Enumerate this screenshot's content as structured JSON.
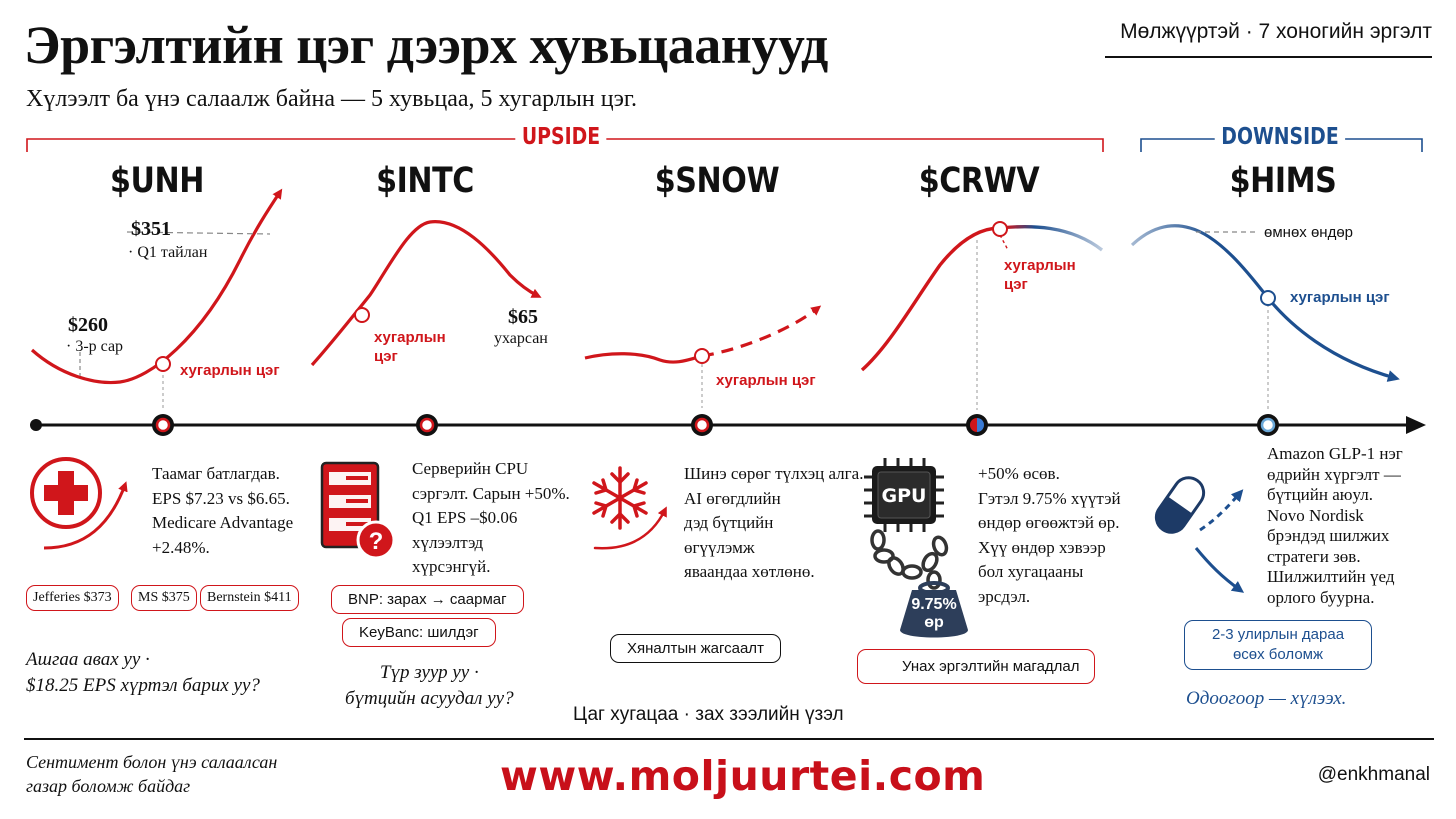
{
  "header": {
    "title": "Эргэлтийн цэг дээрх хувьцаанууд",
    "subtitle": "Хүлээлт ба үнэ салаалж байна — 5 хувьцаа, 5 хугарлын цэг.",
    "series": "Мөлжүүртэй · 7 хоногийн эргэлт"
  },
  "brackets": {
    "upside": "UPSIDE",
    "downside": "DOWNSIDE"
  },
  "colors": {
    "red": "#d0161b",
    "blue": "#1d4f8f",
    "black": "#111111"
  },
  "stocks": [
    {
      "ticker": "$UNH",
      "price_high": "$351",
      "price_high_note": "· Q1 тайлан",
      "price_low": "$260",
      "price_low_note": "· 3-р сар",
      "break_label": "хугарлын цэг",
      "icon": "medical-cross-icon",
      "desc": [
        "Таамаг батлагдав.",
        "EPS $7.23 vs $6.65.",
        "Medicare Advantage",
        "+2.48%."
      ],
      "chips": [
        "Jefferies $373",
        "MS $375",
        "Bernstein $411"
      ],
      "question": [
        "Ашгаа авах уу ·",
        "$18.25 EPS хүртэл барих уу?"
      ]
    },
    {
      "ticker": "$INTC",
      "break_label": [
        "хугарлын",
        "цэг"
      ],
      "price": "$65",
      "price_note": "ухарсан",
      "icon": "server-question-icon",
      "desc": [
        "Серверийн CPU",
        "сэргэлт. Сарын +50%.",
        "Q1 EPS –$0.06",
        "хүлээлтэд",
        "хүрсэнгүй."
      ],
      "chips": [
        "BNP: зарах → саармаг",
        "KeyBanc: шилдэг"
      ],
      "question": [
        "Түр зуур уу ·",
        "бүтцийн асуудал уу?"
      ]
    },
    {
      "ticker": "$SNOW",
      "break_label": "хугарлын цэг",
      "icon": "snowflake-icon",
      "desc": [
        "Шинэ сөрөг түлхэц алга.",
        "AI өгөгдлийн",
        "дэд бүтцийн",
        "өгүүлэмж",
        "яваандаа хөтлөнө."
      ],
      "chip": "Хяналтын жагсаалт"
    },
    {
      "ticker": "$CRWV",
      "break_label": [
        "хугарлын",
        "цэг"
      ],
      "icon": "gpu-chip-chained-weight-icon",
      "gpu_label": "GPU",
      "weight_label": [
        "9.75%",
        "өр"
      ],
      "desc": [
        "+50% өсөв.",
        "Гэтэл 9.75% хүүтэй",
        "өндөр өгөөжтэй өр.",
        "Хүү өндөр хэвээр",
        "бол хугацааны",
        "эрсдэл."
      ],
      "chip": "Унах эргэлтийн магадлал"
    },
    {
      "ticker": "$HIMS",
      "prev_high": "өмнөх өндөр",
      "break_label": "хугарлын цэг",
      "icon": "pill-capsule-icon",
      "desc": [
        "Amazon GLP-1 нэг",
        "өдрийн хүргэлт —",
        "бүтцийн аюул.",
        "Novo Nordisk",
        "брэндэд шилжих",
        "стратеги зөв.",
        "Шилжилтийн үед",
        "орлого буурна."
      ],
      "chip": [
        "2-3 улирлын дараа",
        "өсөх боломж"
      ],
      "question": "Одоогоор — хүлээх."
    }
  ],
  "axis_label": "Цаг хугацаа · зах зээлийн үзэл",
  "footer": {
    "note": [
      "Сентимент болон үнэ салаалсан",
      "газар боломж байдаг"
    ],
    "website": "www.moljuurtei.com",
    "handle": "@enkhmanal"
  }
}
